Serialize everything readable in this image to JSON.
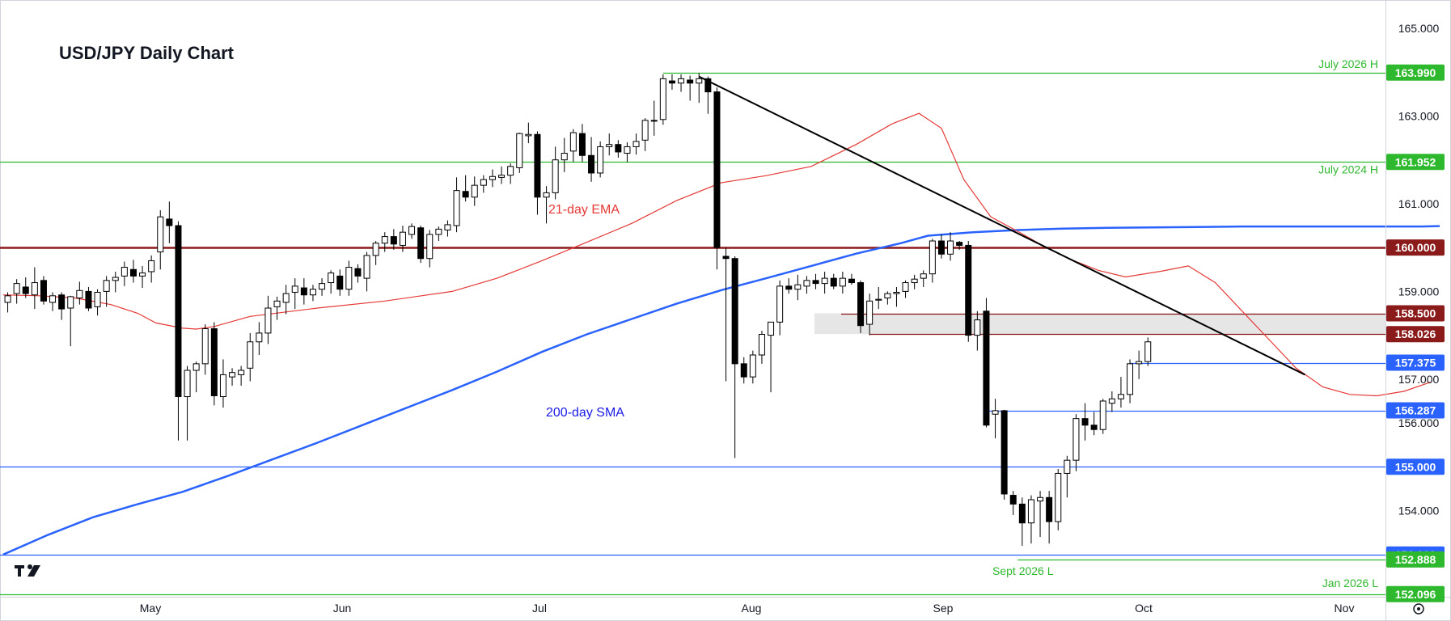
{
  "chart_data": {
    "type": "candlestick",
    "title": "USD/JPY Daily Chart",
    "ylim": [
      151.6,
      165.4
    ],
    "price_ticks": [
      "165.000",
      "163.000",
      "161.000",
      "159.000",
      "157.000",
      "156.000",
      "154.000"
    ],
    "time_ticks": [
      "May",
      "Jun",
      "Jul",
      "Aug",
      "Sep",
      "Oct",
      "Nov"
    ],
    "series": [
      {
        "name": "21-day EMA",
        "color": "#e53935",
        "values": [
          [
            0,
            158.92
          ],
          [
            8,
            158.9
          ],
          [
            16,
            158.85
          ],
          [
            24,
            158.7
          ],
          [
            30,
            158.5
          ],
          [
            34,
            158.28
          ],
          [
            40,
            158.16
          ],
          [
            43,
            158.14
          ],
          [
            47,
            158.2
          ],
          [
            55,
            158.43
          ],
          [
            70,
            158.62
          ],
          [
            85,
            158.78
          ],
          [
            100,
            159.0
          ],
          [
            110,
            159.3
          ],
          [
            120,
            159.7
          ],
          [
            130,
            160.12
          ],
          [
            140,
            160.55
          ],
          [
            150,
            161.07
          ],
          [
            160,
            161.48
          ],
          [
            170,
            161.64
          ],
          [
            180,
            161.85
          ],
          [
            190,
            162.35
          ],
          [
            198,
            162.82
          ],
          [
            204,
            163.06
          ],
          [
            209,
            162.72
          ],
          [
            214,
            161.55
          ],
          [
            220,
            160.7
          ],
          [
            226,
            160.37
          ],
          [
            232,
            160.02
          ],
          [
            238,
            159.72
          ],
          [
            244,
            159.48
          ],
          [
            250,
            159.33
          ],
          [
            258,
            159.46
          ],
          [
            264,
            159.58
          ],
          [
            270,
            159.2
          ],
          [
            276,
            158.55
          ],
          [
            282,
            157.9
          ],
          [
            288,
            157.25
          ],
          [
            294,
            156.82
          ],
          [
            300,
            156.65
          ],
          [
            306,
            156.62
          ],
          [
            312,
            156.72
          ],
          [
            318,
            156.93
          ]
        ]
      },
      {
        "name": "200-day SMA",
        "color": "#2962ff",
        "values": [
          [
            0,
            153.0
          ],
          [
            10,
            153.45
          ],
          [
            20,
            153.85
          ],
          [
            30,
            154.15
          ],
          [
            40,
            154.43
          ],
          [
            50,
            154.79
          ],
          [
            60,
            155.17
          ],
          [
            70,
            155.55
          ],
          [
            80,
            155.95
          ],
          [
            90,
            156.35
          ],
          [
            100,
            156.75
          ],
          [
            110,
            157.17
          ],
          [
            120,
            157.62
          ],
          [
            130,
            158.02
          ],
          [
            140,
            158.37
          ],
          [
            150,
            158.72
          ],
          [
            160,
            159.03
          ],
          [
            170,
            159.3
          ],
          [
            180,
            159.58
          ],
          [
            190,
            159.86
          ],
          [
            200,
            160.1
          ],
          [
            206,
            160.27
          ],
          [
            216,
            160.35
          ],
          [
            226,
            160.4
          ],
          [
            236,
            160.43
          ],
          [
            246,
            160.45
          ],
          [
            256,
            160.46
          ],
          [
            266,
            160.47
          ],
          [
            276,
            160.48
          ],
          [
            286,
            160.48
          ],
          [
            296,
            160.48
          ],
          [
            306,
            160.48
          ],
          [
            316,
            160.48
          ],
          [
            320,
            160.49
          ]
        ]
      }
    ],
    "candles": [
      [
        1,
        158.75,
        158.98,
        158.52,
        158.9
      ],
      [
        3,
        158.95,
        159.28,
        158.72,
        159.18
      ],
      [
        5,
        159.1,
        159.32,
        158.85,
        158.95
      ],
      [
        7,
        158.92,
        159.55,
        158.6,
        159.2
      ],
      [
        9,
        159.25,
        159.35,
        158.7,
        158.78
      ],
      [
        11,
        158.75,
        158.98,
        158.55,
        158.9
      ],
      [
        13,
        158.92,
        158.98,
        158.35,
        158.6
      ],
      [
        15,
        158.62,
        158.9,
        157.75,
        158.88
      ],
      [
        17,
        158.85,
        159.22,
        158.7,
        159.02
      ],
      [
        19,
        159.0,
        159.1,
        158.55,
        158.62
      ],
      [
        21,
        158.65,
        159.05,
        158.45,
        158.98
      ],
      [
        23,
        159.0,
        159.35,
        158.65,
        159.25
      ],
      [
        25,
        159.25,
        159.45,
        158.98,
        159.32
      ],
      [
        27,
        159.35,
        159.68,
        159.12,
        159.55
      ],
      [
        29,
        159.5,
        159.72,
        159.2,
        159.35
      ],
      [
        31,
        159.35,
        159.58,
        159.08,
        159.42
      ],
      [
        33,
        159.45,
        159.82,
        159.2,
        159.7
      ],
      [
        35,
        159.9,
        160.85,
        159.5,
        160.7
      ],
      [
        37,
        160.65,
        161.05,
        160.1,
        160.5
      ],
      [
        39,
        160.5,
        160.6,
        155.6,
        156.6
      ],
      [
        41,
        156.6,
        157.3,
        155.6,
        157.2
      ],
      [
        43,
        157.2,
        157.4,
        156.7,
        157.35
      ],
      [
        45,
        157.35,
        158.25,
        157.1,
        158.15
      ],
      [
        47,
        158.15,
        158.3,
        156.4,
        156.62
      ],
      [
        49,
        156.6,
        157.45,
        156.35,
        157.1
      ],
      [
        51,
        157.05,
        157.25,
        156.85,
        157.15
      ],
      [
        53,
        157.1,
        157.3,
        156.85,
        157.2
      ],
      [
        55,
        157.25,
        158.05,
        156.95,
        157.85
      ],
      [
        57,
        157.85,
        158.3,
        157.55,
        158.05
      ],
      [
        59,
        158.05,
        158.9,
        157.8,
        158.62
      ],
      [
        61,
        158.65,
        158.88,
        158.35,
        158.78
      ],
      [
        63,
        158.75,
        159.15,
        158.48,
        158.95
      ],
      [
        65,
        158.98,
        159.3,
        158.6,
        159.12
      ],
      [
        67,
        159.08,
        159.3,
        158.7,
        158.92
      ],
      [
        69,
        158.92,
        159.15,
        158.78,
        159.05
      ],
      [
        71,
        159.05,
        159.3,
        158.9,
        159.18
      ],
      [
        73,
        159.2,
        159.48,
        158.95,
        159.42
      ],
      [
        75,
        159.35,
        159.5,
        158.9,
        159.05
      ],
      [
        77,
        159.05,
        159.7,
        158.9,
        159.55
      ],
      [
        79,
        159.52,
        159.62,
        159.2,
        159.35
      ],
      [
        81,
        159.3,
        159.9,
        159.0,
        159.82
      ],
      [
        83,
        159.82,
        160.15,
        159.6,
        160.1
      ],
      [
        85,
        160.1,
        160.35,
        159.9,
        160.25
      ],
      [
        87,
        160.25,
        160.42,
        159.95,
        160.08
      ],
      [
        89,
        160.05,
        160.5,
        159.9,
        160.35
      ],
      [
        91,
        160.3,
        160.55,
        160.2,
        160.48
      ],
      [
        93,
        160.45,
        160.5,
        159.65,
        159.75
      ],
      [
        95,
        159.75,
        160.4,
        159.55,
        160.3
      ],
      [
        97,
        160.3,
        160.48,
        160.15,
        160.42
      ],
      [
        99,
        160.4,
        160.62,
        160.25,
        160.52
      ],
      [
        101,
        160.5,
        161.6,
        160.35,
        161.3
      ],
      [
        103,
        161.28,
        161.65,
        161.05,
        161.15
      ],
      [
        105,
        161.15,
        161.62,
        160.95,
        161.42
      ],
      [
        107,
        161.42,
        161.65,
        161.25,
        161.55
      ],
      [
        109,
        161.55,
        161.78,
        161.38,
        161.62
      ],
      [
        111,
        161.6,
        161.85,
        161.45,
        161.65
      ],
      [
        113,
        161.65,
        161.92,
        161.45,
        161.85
      ],
      [
        115,
        161.82,
        162.62,
        161.7,
        162.6
      ],
      [
        117,
        162.55,
        162.85,
        162.38,
        162.58
      ],
      [
        119,
        162.58,
        162.65,
        160.75,
        161.15
      ],
      [
        121,
        161.15,
        161.4,
        160.55,
        161.25
      ],
      [
        123,
        161.25,
        162.3,
        161.1,
        162.0
      ],
      [
        125,
        162.0,
        162.5,
        161.72,
        162.15
      ],
      [
        127,
        162.2,
        162.7,
        161.95,
        162.62
      ],
      [
        129,
        162.6,
        162.82,
        161.95,
        162.1
      ],
      [
        131,
        162.1,
        162.52,
        161.5,
        161.7
      ],
      [
        133,
        161.7,
        162.42,
        161.6,
        162.3
      ],
      [
        135,
        162.3,
        162.6,
        162.1,
        162.35
      ],
      [
        137,
        162.35,
        162.45,
        162.05,
        162.18
      ],
      [
        139,
        162.15,
        162.4,
        161.95,
        162.3
      ],
      [
        141,
        162.3,
        162.6,
        162.12,
        162.42
      ],
      [
        143,
        162.45,
        162.95,
        162.2,
        162.9
      ],
      [
        145,
        162.9,
        163.35,
        162.55,
        162.9
      ],
      [
        147,
        162.92,
        163.95,
        162.8,
        163.85
      ],
      [
        149,
        163.8,
        163.95,
        163.6,
        163.75
      ],
      [
        151,
        163.75,
        163.95,
        163.55,
        163.85
      ],
      [
        153,
        163.82,
        163.92,
        163.35,
        163.75
      ],
      [
        155,
        163.75,
        163.98,
        163.3,
        163.85
      ],
      [
        157,
        163.85,
        163.9,
        163.05,
        163.55
      ],
      [
        159,
        163.55,
        163.65,
        159.5,
        160.0
      ],
      [
        161,
        159.8,
        160.0,
        156.95,
        159.75
      ],
      [
        163,
        159.75,
        159.8,
        155.2,
        157.35
      ],
      [
        165,
        157.35,
        157.5,
        156.9,
        157.05
      ],
      [
        167,
        157.05,
        157.65,
        156.9,
        157.55
      ],
      [
        169,
        157.55,
        158.1,
        157.35,
        158.02
      ],
      [
        171,
        158.0,
        158.3,
        156.7,
        158.3
      ],
      [
        173,
        158.3,
        159.25,
        158.0,
        159.12
      ],
      [
        175,
        159.12,
        159.3,
        158.95,
        159.05
      ],
      [
        177,
        159.05,
        159.38,
        158.8,
        159.15
      ],
      [
        179,
        159.12,
        159.35,
        158.95,
        159.25
      ],
      [
        181,
        159.25,
        159.4,
        159.05,
        159.18
      ],
      [
        183,
        159.18,
        159.45,
        158.95,
        159.3
      ],
      [
        185,
        159.3,
        159.4,
        159.05,
        159.12
      ],
      [
        187,
        159.12,
        159.45,
        158.95,
        159.3
      ],
      [
        189,
        159.28,
        159.4,
        159.15,
        159.2
      ],
      [
        191,
        159.2,
        159.25,
        158.05,
        158.22
      ],
      [
        193,
        158.25,
        158.95,
        158.0,
        158.78
      ],
      [
        195,
        158.8,
        159.1,
        158.6,
        158.82
      ],
      [
        197,
        158.85,
        159.0,
        158.7,
        158.95
      ],
      [
        199,
        158.95,
        159.1,
        158.65,
        158.98
      ],
      [
        201,
        159.0,
        159.25,
        158.85,
        159.2
      ],
      [
        203,
        159.2,
        159.38,
        159.05,
        159.28
      ],
      [
        205,
        159.3,
        159.48,
        159.1,
        159.4
      ],
      [
        207,
        159.4,
        160.2,
        159.2,
        160.15
      ],
      [
        209,
        160.15,
        160.3,
        159.75,
        159.85
      ],
      [
        211,
        159.85,
        160.35,
        159.7,
        160.15
      ],
      [
        213,
        160.12,
        160.15,
        159.95,
        160.05
      ],
      [
        215,
        160.05,
        160.15,
        157.85,
        158.0
      ],
      [
        217,
        158.0,
        158.55,
        157.65,
        158.35
      ],
      [
        219,
        158.55,
        158.85,
        155.9,
        155.95
      ],
      [
        221,
        156.2,
        156.55,
        155.65,
        156.28
      ],
      [
        223,
        156.28,
        156.3,
        154.25,
        154.38
      ],
      [
        225,
        154.35,
        154.45,
        153.9,
        154.15
      ],
      [
        227,
        154.15,
        154.3,
        153.2,
        153.72
      ],
      [
        229,
        153.72,
        154.35,
        153.25,
        154.25
      ],
      [
        231,
        154.22,
        154.45,
        153.4,
        154.3
      ],
      [
        233,
        154.3,
        154.45,
        153.25,
        153.75
      ],
      [
        235,
        153.75,
        154.95,
        153.55,
        154.85
      ],
      [
        237,
        154.85,
        155.25,
        154.3,
        155.15
      ],
      [
        239,
        155.15,
        156.2,
        154.9,
        156.1
      ],
      [
        241,
        156.1,
        156.45,
        155.6,
        155.95
      ],
      [
        243,
        155.95,
        156.25,
        155.72,
        155.85
      ],
      [
        245,
        155.85,
        156.55,
        155.75,
        156.5
      ],
      [
        247,
        156.45,
        156.72,
        156.25,
        156.55
      ],
      [
        249,
        156.55,
        157.05,
        156.35,
        156.65
      ],
      [
        251,
        156.65,
        157.45,
        156.45,
        157.35
      ],
      [
        253,
        157.35,
        157.65,
        157.0,
        157.4
      ],
      [
        255,
        157.4,
        157.95,
        157.3,
        157.85
      ]
    ],
    "levels": [
      {
        "value": 163.99,
        "label": "163.990",
        "color": "#2eb82e",
        "note": "July 2026 H"
      },
      {
        "value": 161.952,
        "label": "161.952",
        "color": "#2eb82e",
        "note": "July 2024 H"
      },
      {
        "value": 160.0,
        "label": "160.000",
        "color": "#8b1a1a",
        "note": ""
      },
      {
        "value": 158.5,
        "label": "158.500",
        "color": "#8b1a1a",
        "note": ""
      },
      {
        "value": 158.026,
        "label": "158.026",
        "color": "#8b1a1a",
        "note": ""
      },
      {
        "value": 157.375,
        "label": "157.375",
        "color": "#2962ff",
        "note": ""
      },
      {
        "value": 156.287,
        "label": "156.287",
        "color": "#2962ff",
        "note": ""
      },
      {
        "value": 155.0,
        "label": "155.000",
        "color": "#2962ff",
        "note": ""
      },
      {
        "value": 153.0,
        "label": "153.000",
        "color": "#2962ff",
        "note": ""
      },
      {
        "value": 152.888,
        "label": "152.888",
        "color": "#2eb82e",
        "note": "Sept 2026 L"
      },
      {
        "value": 152.096,
        "label": "152.096",
        "color": "#2eb82e",
        "note": "Jan 2026 L"
      }
    ],
    "annotations": [
      "21-day EMA",
      "200-day SMA"
    ],
    "trendline": [
      [
        155,
        163.9
      ],
      [
        290,
        157.1
      ]
    ],
    "zone": {
      "from": 158.026,
      "to": 158.5
    },
    "colors": {
      "up": "#ffffff",
      "down": "#000000",
      "wick": "#000000"
    }
  }
}
